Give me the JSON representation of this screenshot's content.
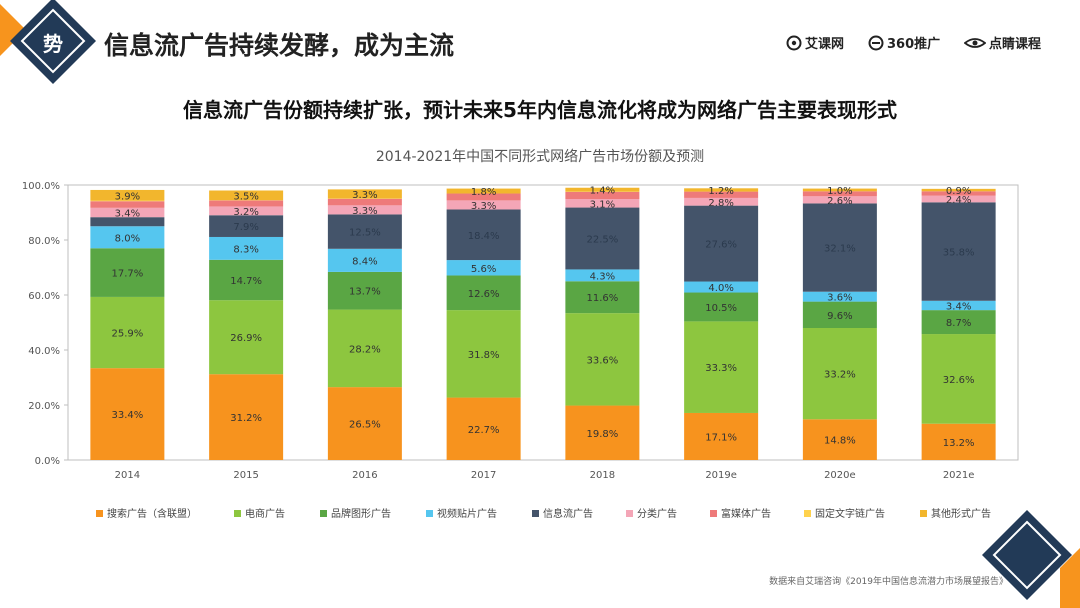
{
  "header": {
    "badge": "势",
    "title": "信息流广告持续发酵，成为主流",
    "brands": [
      "艾课网",
      "360推广",
      "点睛课程"
    ]
  },
  "headline": "信息流广告份额持续扩张，预计未来5年内信息流化将成为网络广告主要表现形式",
  "source": "数据来自艾瑞咨询《2019年中国信息流潜力市场展望报告》",
  "chart_data": {
    "type": "bar",
    "stacked": true,
    "title": "2014-2021年中国不同形式网络广告市场份额及预测",
    "categories": [
      "2014",
      "2015",
      "2016",
      "2017",
      "2018",
      "2019e",
      "2020e",
      "2021e"
    ],
    "y_ticks": [
      "0.0%",
      "20.0%",
      "40.0%",
      "60.0%",
      "80.0%",
      "100.0%"
    ],
    "ylim": [
      0,
      100
    ],
    "legend_position": "bottom",
    "series": [
      {
        "name": "搜索广告（含联盟）",
        "color": "#f7931e",
        "values": [
          33.4,
          31.2,
          26.5,
          22.7,
          19.8,
          17.1,
          14.8,
          13.2
        ],
        "labels": [
          "33.4%",
          "31.2%",
          "26.5%",
          "22.7%",
          "19.8%",
          "17.1%",
          "14.8%",
          "13.2%"
        ]
      },
      {
        "name": "电商广告",
        "color": "#8dc63f",
        "values": [
          25.9,
          26.9,
          28.2,
          31.8,
          33.6,
          33.3,
          33.2,
          32.6
        ],
        "labels": [
          "25.9%",
          "26.9%",
          "28.2%",
          "31.8%",
          "33.6%",
          "33.3%",
          "33.2%",
          "32.6%"
        ]
      },
      {
        "name": "品牌图形广告",
        "color": "#5aa644",
        "values": [
          17.7,
          14.7,
          13.7,
          12.6,
          11.6,
          10.5,
          9.6,
          8.7
        ],
        "labels": [
          "17.7%",
          "14.7%",
          "13.7%",
          "12.6%",
          "11.6%",
          "10.5%",
          "9.6%",
          "8.7%"
        ]
      },
      {
        "name": "视频贴片广告",
        "color": "#55c6ef",
        "values": [
          8.0,
          8.3,
          8.4,
          5.6,
          4.3,
          4.0,
          3.6,
          3.4
        ],
        "labels": [
          "8.0%",
          "8.3%",
          "8.4%",
          "5.6%",
          "4.3%",
          "4.0%",
          "3.6%",
          "3.4%"
        ]
      },
      {
        "name": "信息流广告",
        "color": "#44546a",
        "values": [
          3.3,
          7.9,
          12.5,
          18.4,
          22.5,
          27.6,
          32.1,
          35.8
        ],
        "labels": [
          "",
          "7.9%",
          "12.5%",
          "18.4%",
          "22.5%",
          "27.6%",
          "32.1%",
          "35.8%"
        ]
      },
      {
        "name": "分类广告",
        "color": "#f4a6b7",
        "values": [
          3.4,
          3.2,
          3.3,
          3.3,
          3.1,
          2.8,
          2.6,
          2.4
        ],
        "labels": [
          "3.4%",
          "3.2%",
          "3.3%",
          "3.3%",
          "3.1%",
          "2.8%",
          "2.6%",
          "2.4%"
        ]
      },
      {
        "name": "富媒体广告",
        "color": "#ee7a7a",
        "values": [
          2.4,
          2.2,
          2.4,
          2.5,
          2.6,
          2.3,
          1.8,
          1.6
        ],
        "labels": [
          "",
          "",
          "",
          "",
          "",
          "",
          "",
          ""
        ]
      },
      {
        "name": "固定文字链广告",
        "color": "#ffd24d",
        "values": [
          0.2,
          0.1,
          0.1,
          0.0,
          0.1,
          0.0,
          0.0,
          0.0
        ],
        "labels": [
          "",
          "",
          "",
          "",
          "",
          "",
          "",
          ""
        ]
      },
      {
        "name": "其他形式广告",
        "color": "#f2b62d",
        "values": [
          3.9,
          3.5,
          3.3,
          1.8,
          1.4,
          1.2,
          1.0,
          0.9
        ],
        "labels": [
          "3.9%",
          "3.5%",
          "3.3%",
          "1.8%",
          "1.4%",
          "1.2%",
          "1.0%",
          "0.9%"
        ]
      }
    ]
  }
}
